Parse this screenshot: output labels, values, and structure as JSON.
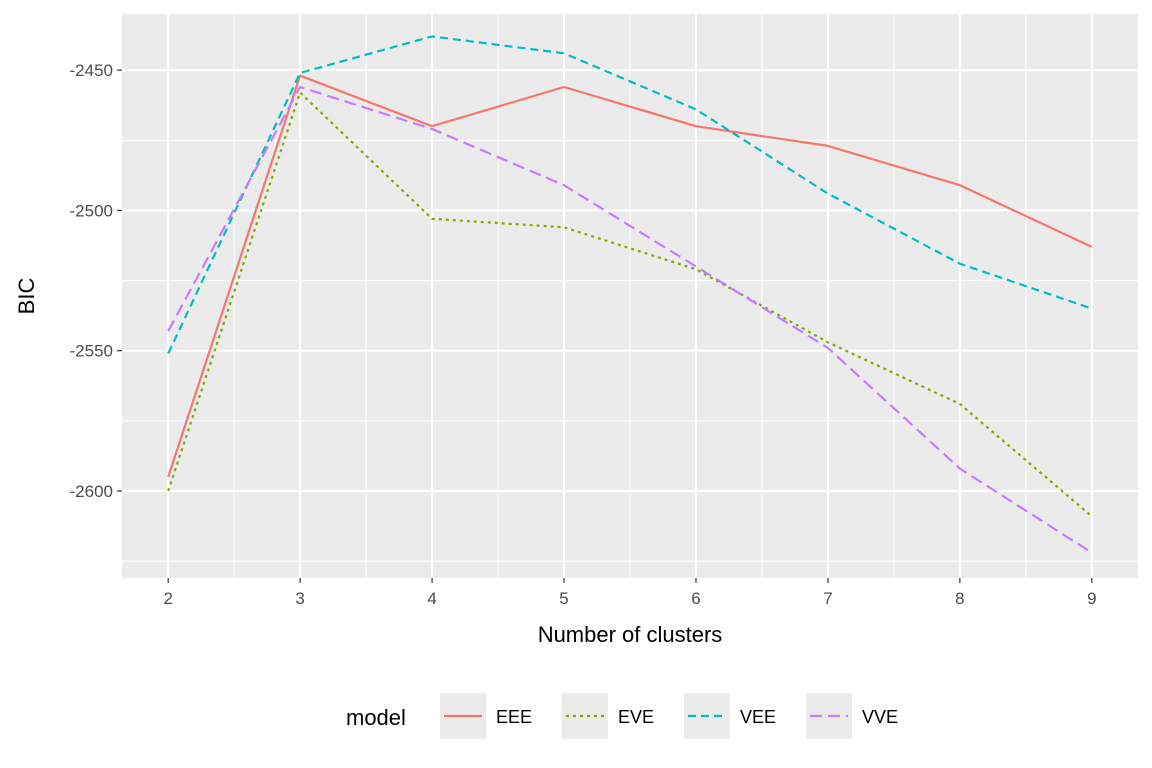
{
  "chart_data": {
    "type": "line",
    "xlabel": "Number of clusters",
    "ylabel": "BIC",
    "x": [
      2,
      3,
      4,
      5,
      6,
      7,
      8,
      9
    ],
    "xlim": [
      1.65,
      9.35
    ],
    "ylim": [
      -2631,
      -2430
    ],
    "y_ticks": [
      -2600,
      -2550,
      -2500,
      -2450
    ],
    "x_ticks": [
      2,
      3,
      4,
      5,
      6,
      7,
      8,
      9
    ],
    "grid": true,
    "legend": {
      "title": "model",
      "position": "bottom"
    },
    "series": [
      {
        "name": "EEE",
        "color": "#F8766D",
        "dash": "solid",
        "values": [
          -2595,
          -2452,
          -2470,
          -2456,
          -2470,
          -2477,
          -2491,
          -2513
        ]
      },
      {
        "name": "EVE",
        "color": "#7CAE00",
        "dash": "dotted",
        "values": [
          -2600,
          -2458,
          -2503,
          -2506,
          -2521,
          -2547,
          -2569,
          -2609
        ]
      },
      {
        "name": "VEE",
        "color": "#00BFC4",
        "dash": "dashed",
        "values": [
          -2551,
          -2451,
          -2438,
          -2444,
          -2464,
          -2494,
          -2519,
          -2535
        ]
      },
      {
        "name": "VVE",
        "color": "#C77CFF",
        "dash": "longdash",
        "values": [
          -2543,
          -2456,
          -2471,
          -2491,
          -2520,
          -2549,
          -2592,
          -2622
        ]
      }
    ]
  }
}
